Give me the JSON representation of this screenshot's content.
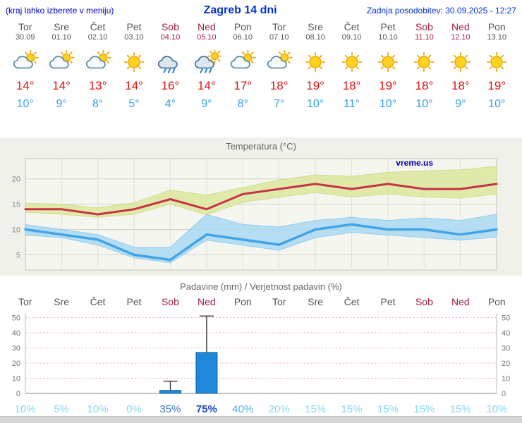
{
  "header": {
    "menu_hint": "(kraj lahko izberete v meniju)",
    "title": "Zagreb 14 dni",
    "last_update": "Zadnja posodobitev: 30.09.2025 - 12:27"
  },
  "colors": {
    "header_blue": "#0033cc",
    "weekend_red": "#a01e3c",
    "weekday_gray": "#555555",
    "high_temp_red": "#dd1111",
    "low_temp_blue": "#35a0f0",
    "max_band_green": "#dbe79c",
    "min_band_blue": "#a9d9f2",
    "bar_blue": "#1f88d8"
  },
  "forecast": {
    "days": [
      {
        "name": "Tor",
        "date": "30.09",
        "weekend": false,
        "icon": "cloud-sun-icon",
        "high": "14°",
        "low": "10°"
      },
      {
        "name": "Sre",
        "date": "01.10",
        "weekend": false,
        "icon": "cloud-sun-icon",
        "high": "14°",
        "low": "9°"
      },
      {
        "name": "Čet",
        "date": "02.10",
        "weekend": false,
        "icon": "cloud-sun-icon",
        "high": "13°",
        "low": "8°"
      },
      {
        "name": "Pet",
        "date": "03.10",
        "weekend": false,
        "icon": "sun-icon",
        "high": "14°",
        "low": "5°"
      },
      {
        "name": "Sob",
        "date": "04.10",
        "weekend": true,
        "icon": "rain-cloud-icon",
        "high": "16°",
        "low": "4°"
      },
      {
        "name": "Ned",
        "date": "05.10",
        "weekend": true,
        "icon": "rain-sun-icon",
        "high": "14°",
        "low": "9°"
      },
      {
        "name": "Pon",
        "date": "06.10",
        "weekend": false,
        "icon": "cloud-sun-icon",
        "high": "17°",
        "low": "8°"
      },
      {
        "name": "Tor",
        "date": "07.10",
        "weekend": false,
        "icon": "cloud-sun-icon",
        "high": "18°",
        "low": "7°"
      },
      {
        "name": "Sre",
        "date": "08.10",
        "weekend": false,
        "icon": "sun-icon",
        "high": "19°",
        "low": "10°"
      },
      {
        "name": "Čet",
        "date": "09.10",
        "weekend": false,
        "icon": "sun-icon",
        "high": "18°",
        "low": "11°"
      },
      {
        "name": "Pet",
        "date": "10.10",
        "weekend": false,
        "icon": "sun-icon",
        "high": "19°",
        "low": "10°"
      },
      {
        "name": "Sob",
        "date": "11.10",
        "weekend": true,
        "icon": "sun-icon",
        "high": "18°",
        "low": "10°"
      },
      {
        "name": "Ned",
        "date": "12.10",
        "weekend": true,
        "icon": "sun-icon",
        "high": "18°",
        "low": "9°"
      },
      {
        "name": "Pon",
        "date": "13.10",
        "weekend": false,
        "icon": "sun-icon",
        "high": "19°",
        "low": "10°"
      }
    ]
  },
  "chart_data": [
    {
      "type": "line",
      "title": "Temperatura (°C)",
      "watermark": "vreme.us",
      "x_labels": [
        "Tor",
        "Sre",
        "Čet",
        "Pet",
        "Sob",
        "Ned",
        "Pon",
        "Tor",
        "Sre",
        "Čet",
        "Pet",
        "Sob",
        "Ned",
        "Pon"
      ],
      "ylim": [
        2,
        24
      ],
      "yticks": [
        5,
        10,
        15,
        20
      ],
      "grid": true,
      "series": [
        {
          "name": "max-temp",
          "color": "#c83248",
          "width": 3,
          "values": [
            14,
            14,
            13,
            14,
            16,
            14,
            17,
            18,
            19,
            18,
            19,
            18,
            18,
            19
          ]
        },
        {
          "name": "min-temp",
          "color": "#42a4e6",
          "width": 3.5,
          "values": [
            10,
            9,
            8,
            5,
            4,
            9,
            8,
            7,
            10,
            11,
            10,
            10,
            9,
            10
          ]
        }
      ],
      "bands": [
        {
          "name": "max-temp-range",
          "color": "#dbe79c",
          "edge": "#c6d878",
          "upper": [
            15.2,
            15.0,
            14.3,
            15.3,
            17.8,
            16.8,
            18.3,
            19.8,
            20.8,
            20.5,
            21.3,
            21.6,
            21.8,
            22.5
          ],
          "lower": [
            13.4,
            13.0,
            12.4,
            13.0,
            15.0,
            12.9,
            15.4,
            16.4,
            17.3,
            16.4,
            17.0,
            16.4,
            16.2,
            17.0
          ]
        },
        {
          "name": "min-temp-range",
          "color": "#a9d9f2",
          "edge": "#7cc2ea",
          "upper": [
            11.0,
            10.0,
            9.0,
            6.5,
            6.5,
            13.0,
            11.0,
            10.5,
            11.8,
            12.4,
            11.8,
            12.3,
            11.8,
            13.0
          ],
          "lower": [
            8.9,
            8.4,
            6.9,
            4.4,
            3.4,
            7.9,
            6.9,
            5.9,
            8.4,
            9.4,
            8.9,
            8.4,
            7.9,
            8.5
          ]
        }
      ]
    },
    {
      "type": "bar",
      "title": "Padavine (mm) / Verjetnost padavin (%)",
      "categories": [
        {
          "label": "Tor",
          "weekend": false
        },
        {
          "label": "Sre",
          "weekend": false
        },
        {
          "label": "Čet",
          "weekend": false
        },
        {
          "label": "Pet",
          "weekend": false
        },
        {
          "label": "Sob",
          "weekend": true
        },
        {
          "label": "Ned",
          "weekend": true
        },
        {
          "label": "Pon",
          "weekend": false
        },
        {
          "label": "Tor",
          "weekend": false
        },
        {
          "label": "Sre",
          "weekend": false
        },
        {
          "label": "Čet",
          "weekend": false
        },
        {
          "label": "Pet",
          "weekend": false
        },
        {
          "label": "Sob",
          "weekend": true
        },
        {
          "label": "Ned",
          "weekend": true
        },
        {
          "label": "Pon",
          "weekend": false
        }
      ],
      "ylim": [
        0,
        53
      ],
      "yticks": [
        0,
        10,
        20,
        30,
        40,
        50
      ],
      "bar_color": "#1f88d8",
      "bar_edge": "#0f5faa",
      "values": [
        0,
        0,
        0,
        0,
        2,
        27,
        0,
        0,
        0,
        0,
        0,
        0,
        0,
        0
      ],
      "whisker_max": [
        0,
        0,
        0,
        0,
        8,
        51,
        0,
        0,
        0,
        0,
        0,
        0,
        0,
        0
      ],
      "probabilities": [
        {
          "label": "10%",
          "color": "#85d7ee",
          "bold": false
        },
        {
          "label": "5%",
          "color": "#85d7ee",
          "bold": false
        },
        {
          "label": "10%",
          "color": "#85d7ee",
          "bold": false
        },
        {
          "label": "0%",
          "color": "#85d7ee",
          "bold": false
        },
        {
          "label": "35%",
          "color": "#3a77cc",
          "bold": false
        },
        {
          "label": "75%",
          "color": "#1c49c2",
          "bold": true
        },
        {
          "label": "40%",
          "color": "#4fb0e0",
          "bold": false
        },
        {
          "label": "20%",
          "color": "#85d7ee",
          "bold": false
        },
        {
          "label": "15%",
          "color": "#85d7ee",
          "bold": false
        },
        {
          "label": "15%",
          "color": "#85d7ee",
          "bold": false
        },
        {
          "label": "15%",
          "color": "#85d7ee",
          "bold": false
        },
        {
          "label": "15%",
          "color": "#85d7ee",
          "bold": false
        },
        {
          "label": "15%",
          "color": "#85d7ee",
          "bold": false
        },
        {
          "label": "10%",
          "color": "#85d7ee",
          "bold": false
        }
      ]
    }
  ]
}
